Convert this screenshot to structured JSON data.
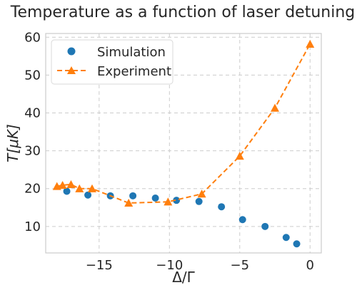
{
  "chart_data": {
    "type": "scatter",
    "title": "Temperature as a function of laser detuning",
    "xlabel": "Δ/Γ",
    "ylabel": "T[μK]",
    "xlim": [
      -18.8,
      0.8
    ],
    "ylim": [
      3,
      61
    ],
    "xticks": [
      -15,
      -10,
      -5,
      0
    ],
    "xtick_labels": [
      "−15",
      "−10",
      "−5",
      "0"
    ],
    "yticks": [
      10,
      20,
      30,
      40,
      50,
      60
    ],
    "ytick_labels": [
      "10",
      "20",
      "30",
      "40",
      "50",
      "60"
    ],
    "grid": true,
    "legend_position": "top-left",
    "series": [
      {
        "name": "Simulation",
        "style": "scatter",
        "marker": "circle",
        "color": "#1f77b4",
        "x": [
          -17.3,
          -15.8,
          -14.2,
          -12.6,
          -11.0,
          -9.5,
          -7.9,
          -6.3,
          -4.8,
          -3.2,
          -1.7,
          -0.95
        ],
        "y": [
          19.3,
          18.3,
          18.1,
          18.1,
          17.5,
          16.9,
          16.6,
          15.2,
          11.8,
          10.0,
          7.1,
          5.4
        ]
      },
      {
        "name": "Experiment",
        "style": "dashed-line",
        "marker": "triangle",
        "color": "#ff7f0e",
        "x": [
          -18.0,
          -17.6,
          -17.0,
          -16.4,
          -15.5,
          -12.9,
          -10.1,
          -7.7,
          -5.0,
          -2.5,
          0.0
        ],
        "y": [
          20.6,
          20.9,
          21.1,
          20.0,
          20.0,
          16.2,
          16.5,
          18.6,
          28.6,
          41.3,
          58.2
        ]
      }
    ]
  }
}
